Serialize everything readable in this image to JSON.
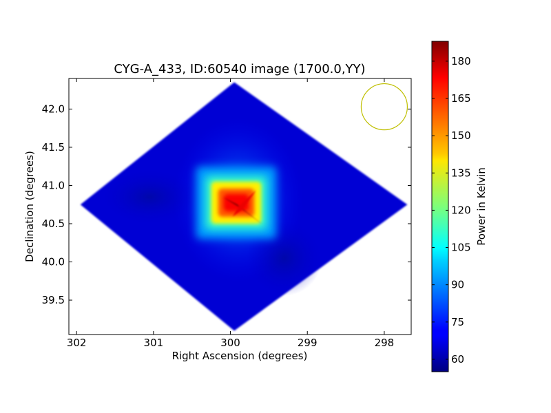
{
  "chart_data": {
    "type": "heatmap",
    "title": "CYG-A_433, ID:60540 image (1700.0,YY)",
    "xlabel": "Right Ascension (degrees)",
    "ylabel": "Declination (degrees)",
    "xlim": [
      302.1,
      297.65
    ],
    "ylim": [
      39.05,
      42.4
    ],
    "x_ticks": [
      302,
      301,
      300,
      299,
      298
    ],
    "y_ticks": [
      39.5,
      40.0,
      40.5,
      41.0,
      41.5,
      42.0
    ],
    "x_tick_labels": [
      "302",
      "301",
      "300",
      "299",
      "298"
    ],
    "y_tick_labels": [
      "39.5",
      "40.0",
      "40.5",
      "41.0",
      "41.5",
      "42.0"
    ],
    "colormap": "jet",
    "colorbar": {
      "label": "Power in Kelvin",
      "range": [
        55,
        188
      ],
      "ticks": [
        60,
        75,
        90,
        105,
        120,
        135,
        150,
        165,
        180
      ],
      "tick_labels": [
        "60",
        "75",
        "90",
        "105",
        "120",
        "135",
        "150",
        "165",
        "180"
      ]
    },
    "footprint": {
      "shape": "diamond",
      "vertices": [
        [
          301.95,
          40.75
        ],
        [
          299.95,
          42.35
        ],
        [
          297.7,
          40.75
        ],
        [
          299.95,
          39.1
        ]
      ]
    },
    "peak": {
      "ra": 299.9,
      "dec": 40.72,
      "value": 188
    },
    "source_box": {
      "ra_range": [
        299.6,
        300.25
      ],
      "dec_range": [
        40.5,
        41.05
      ]
    },
    "background_level": 66,
    "beam_circle": {
      "ra": 298.0,
      "dec": 42.03,
      "radius_deg": 0.3,
      "color": "#bfbf00"
    }
  }
}
